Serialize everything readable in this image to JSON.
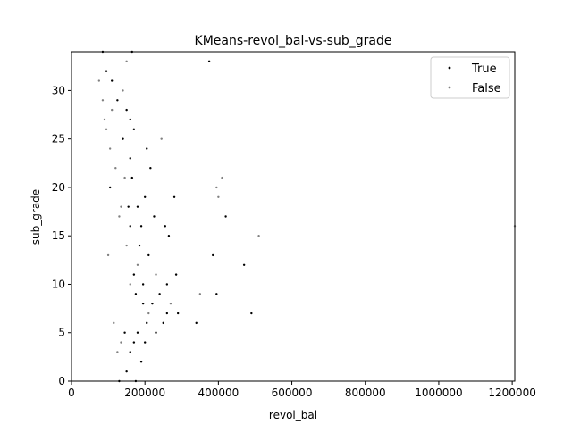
{
  "chart_data": {
    "type": "scatter",
    "title": "KMeans-revol_bal-vs-sub_grade",
    "xlabel": "revol_bal",
    "ylabel": "sub_grade",
    "xlim": [
      0,
      1207000
    ],
    "ylim": [
      0,
      34
    ],
    "xticks": [
      0,
      200000,
      400000,
      600000,
      800000,
      1000000,
      1200000
    ],
    "xtick_labels": [
      "0",
      "200000",
      "400000",
      "600000",
      "800000",
      "1000000",
      "1200000"
    ],
    "yticks": [
      0,
      5,
      10,
      15,
      20,
      25,
      30
    ],
    "ytick_labels": [
      "0",
      "5",
      "10",
      "15",
      "20",
      "25",
      "30"
    ],
    "grid": false,
    "legend_position": "top-right",
    "series": [
      {
        "name": "True",
        "color": "#000000",
        "points": [
          [
            130000,
            0
          ],
          [
            175000,
            0
          ],
          [
            150000,
            1
          ],
          [
            190000,
            2
          ],
          [
            160000,
            3
          ],
          [
            170000,
            4
          ],
          [
            200000,
            4
          ],
          [
            145000,
            5
          ],
          [
            180000,
            5
          ],
          [
            230000,
            5
          ],
          [
            340000,
            6
          ],
          [
            250000,
            6
          ],
          [
            205000,
            6
          ],
          [
            490000,
            7
          ],
          [
            290000,
            7
          ],
          [
            260000,
            7
          ],
          [
            220000,
            8
          ],
          [
            195000,
            8
          ],
          [
            240000,
            9
          ],
          [
            175000,
            9
          ],
          [
            395000,
            9
          ],
          [
            195000,
            10
          ],
          [
            260000,
            10
          ],
          [
            170000,
            11
          ],
          [
            285000,
            11
          ],
          [
            470000,
            12
          ],
          [
            385000,
            13
          ],
          [
            210000,
            13
          ],
          [
            185000,
            14
          ],
          [
            265000,
            15
          ],
          [
            160000,
            16
          ],
          [
            190000,
            16
          ],
          [
            255000,
            16
          ],
          [
            420000,
            17
          ],
          [
            225000,
            17
          ],
          [
            155000,
            18
          ],
          [
            180000,
            18
          ],
          [
            280000,
            19
          ],
          [
            200000,
            19
          ],
          [
            105000,
            20
          ],
          [
            165000,
            21
          ],
          [
            215000,
            22
          ],
          [
            160000,
            23
          ],
          [
            205000,
            24
          ],
          [
            140000,
            25
          ],
          [
            170000,
            26
          ],
          [
            160000,
            27
          ],
          [
            150000,
            28
          ],
          [
            125000,
            29
          ],
          [
            110000,
            31
          ],
          [
            375000,
            33
          ],
          [
            95000,
            32
          ],
          [
            85000,
            34
          ],
          [
            165000,
            34
          ]
        ]
      },
      {
        "name": "False",
        "color": "#808080",
        "points": [
          [
            1207000,
            16
          ],
          [
            510000,
            15
          ],
          [
            400000,
            19
          ],
          [
            395000,
            20
          ],
          [
            410000,
            21
          ],
          [
            245000,
            25
          ],
          [
            350000,
            9
          ],
          [
            180000,
            12
          ],
          [
            230000,
            11
          ],
          [
            270000,
            8
          ],
          [
            210000,
            7
          ],
          [
            150000,
            14
          ],
          [
            120000,
            22
          ],
          [
            105000,
            24
          ],
          [
            140000,
            30
          ],
          [
            110000,
            28
          ],
          [
            95000,
            26
          ],
          [
            135000,
            18
          ],
          [
            150000,
            33
          ],
          [
            75000,
            31
          ],
          [
            90000,
            27
          ],
          [
            125000,
            3
          ],
          [
            115000,
            6
          ],
          [
            100000,
            13
          ],
          [
            85000,
            29
          ],
          [
            130000,
            17
          ],
          [
            145000,
            21
          ],
          [
            160000,
            10
          ],
          [
            135000,
            4
          ]
        ]
      }
    ]
  }
}
